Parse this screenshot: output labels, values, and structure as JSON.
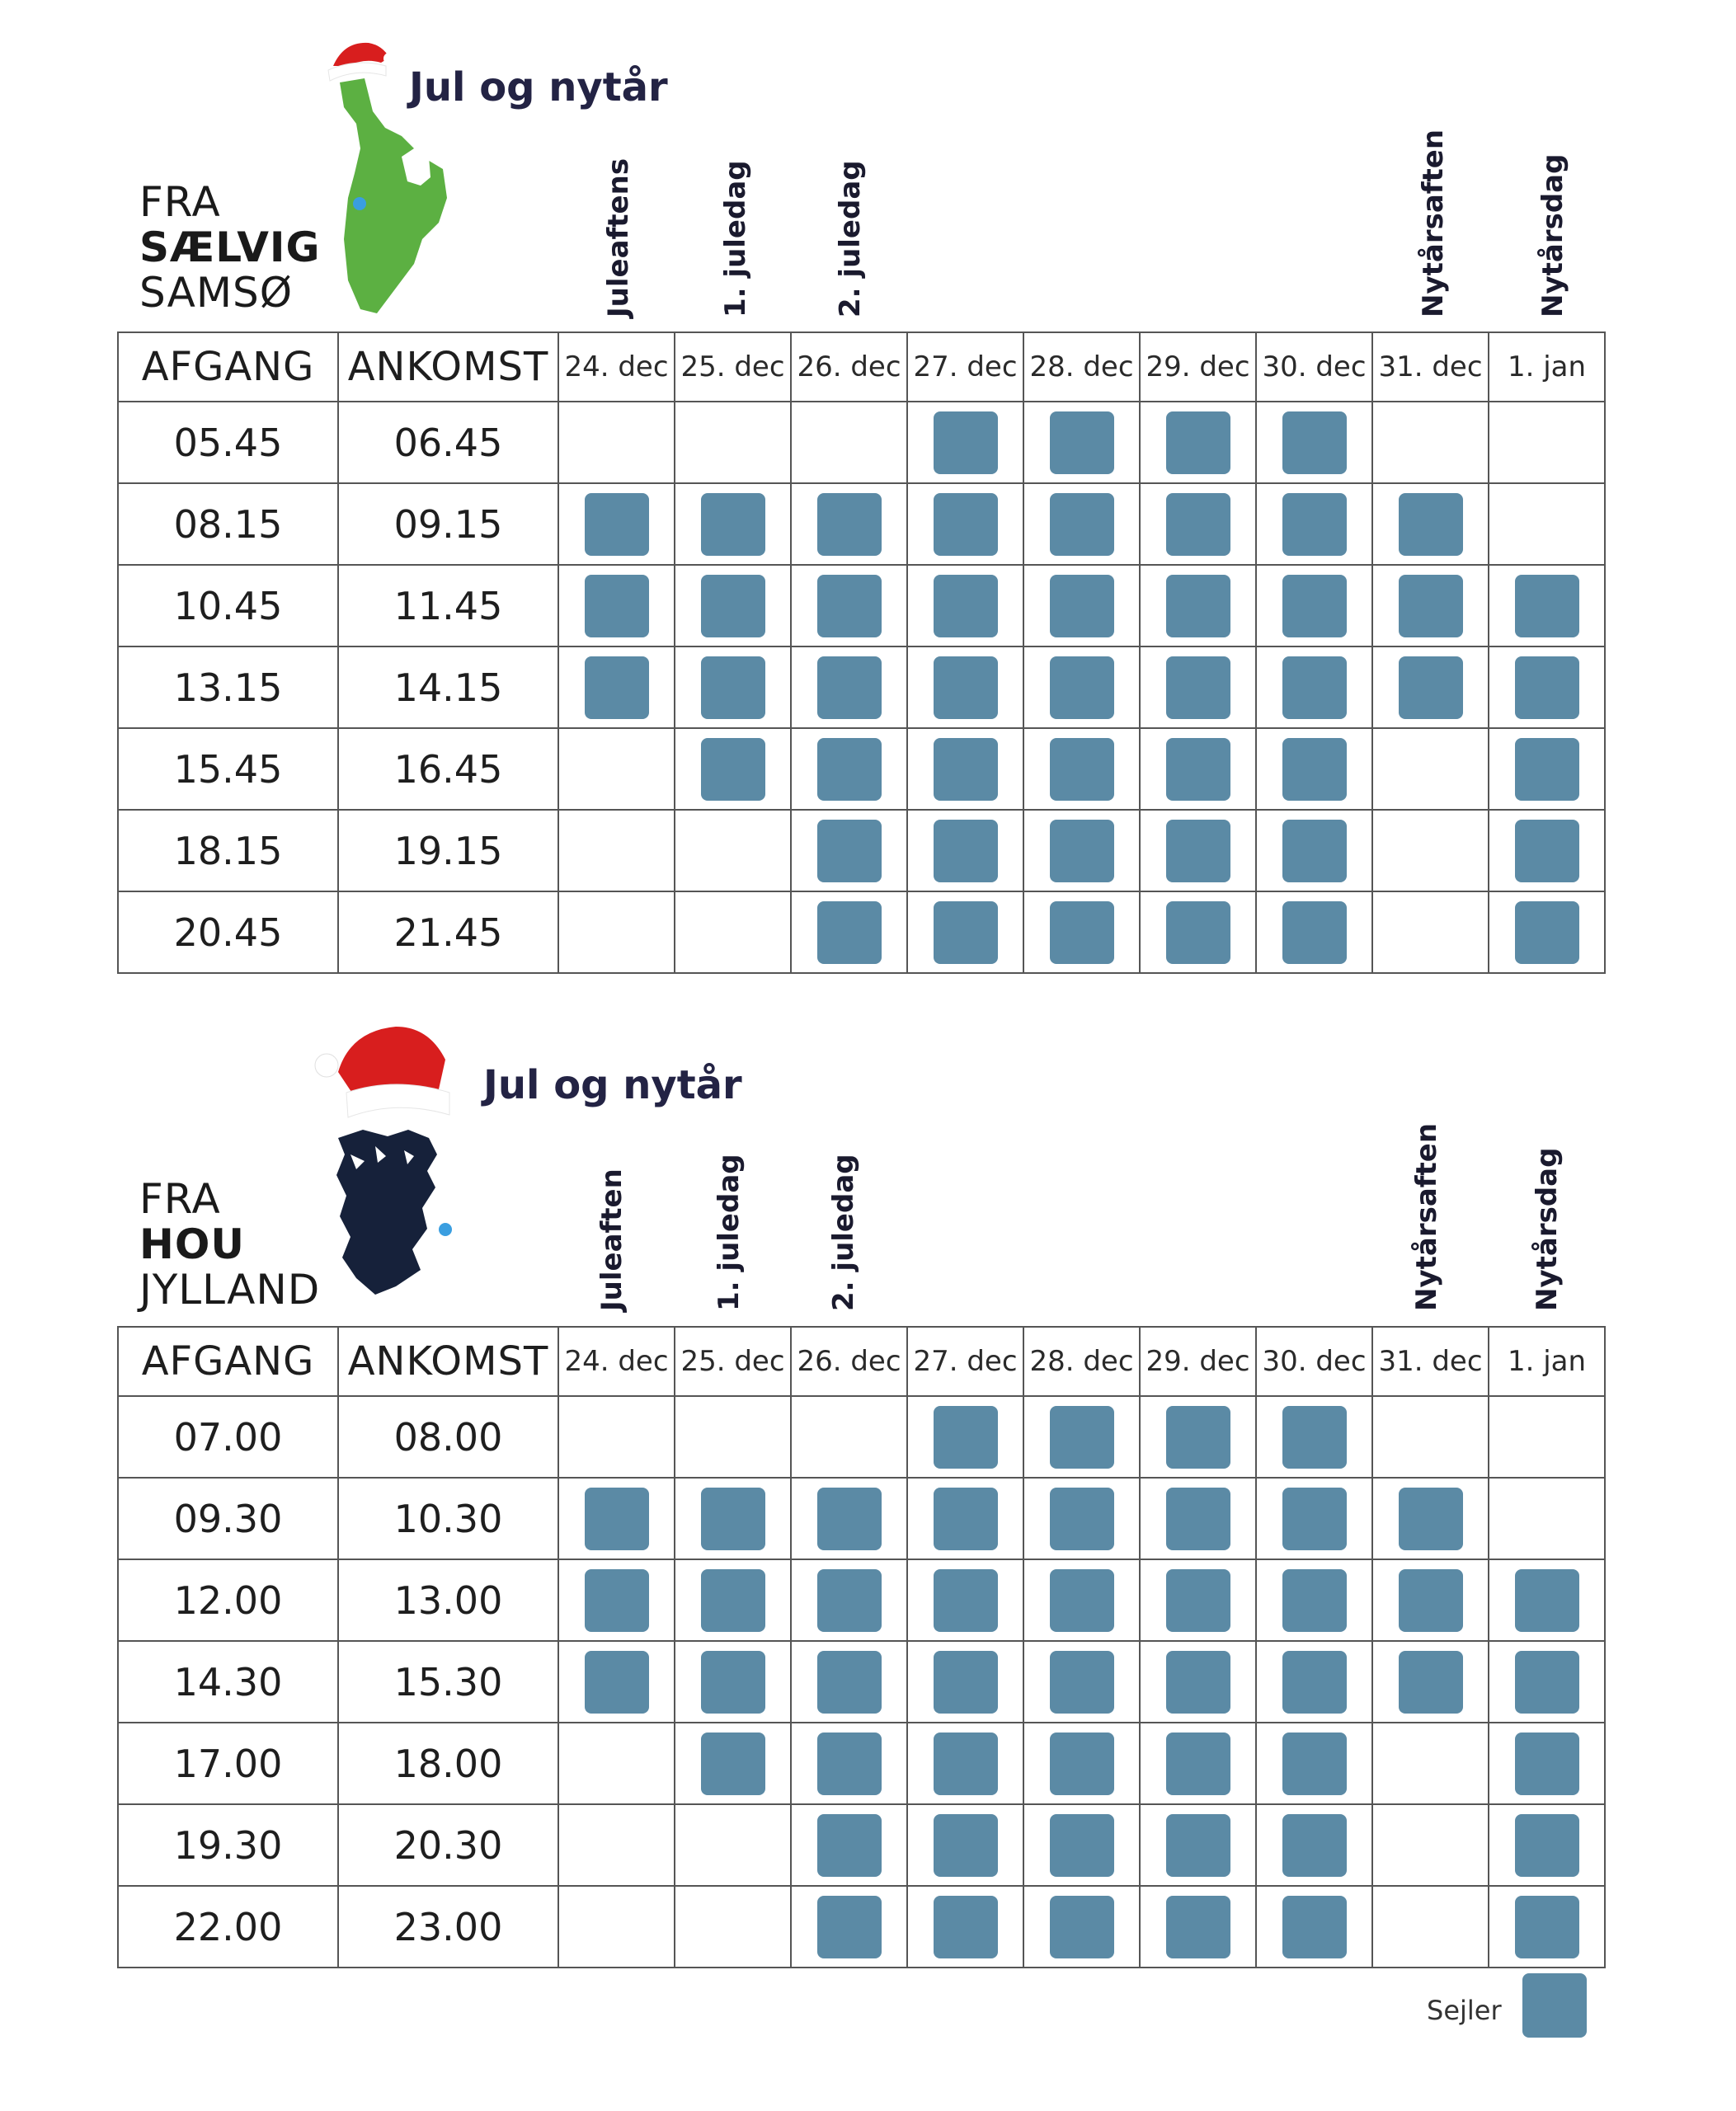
{
  "legend": {
    "label": "Sejler",
    "color": "#5b8aa5"
  },
  "sections": [
    {
      "title": "Jul og nytår",
      "from": [
        "FRA",
        "SÆLVIG",
        "SAMSØ"
      ],
      "island": "samso-map",
      "island_color": "#5cb042",
      "holidays": [
        "Juleaftens",
        "1. juledag",
        "2. juledag",
        "Nytårsaften",
        "Nytårsdag"
      ],
      "headers": {
        "depart": "AFGANG",
        "arrive": "ANKOMST"
      },
      "days": [
        "24. dec",
        "25. dec",
        "26. dec",
        "27. dec",
        "28. dec",
        "29. dec",
        "30. dec",
        "31. dec",
        "1. jan"
      ],
      "rows": [
        {
          "depart": "05.45",
          "arrive": "06.45",
          "sails": [
            0,
            0,
            0,
            1,
            1,
            1,
            1,
            0,
            0
          ]
        },
        {
          "depart": "08.15",
          "arrive": "09.15",
          "sails": [
            1,
            1,
            1,
            1,
            1,
            1,
            1,
            1,
            0
          ]
        },
        {
          "depart": "10.45",
          "arrive": "11.45",
          "sails": [
            1,
            1,
            1,
            1,
            1,
            1,
            1,
            1,
            1
          ]
        },
        {
          "depart": "13.15",
          "arrive": "14.15",
          "sails": [
            1,
            1,
            1,
            1,
            1,
            1,
            1,
            1,
            1
          ]
        },
        {
          "depart": "15.45",
          "arrive": "16.45",
          "sails": [
            0,
            1,
            1,
            1,
            1,
            1,
            1,
            0,
            1
          ]
        },
        {
          "depart": "18.15",
          "arrive": "19.15",
          "sails": [
            0,
            0,
            1,
            1,
            1,
            1,
            1,
            0,
            1
          ]
        },
        {
          "depart": "20.45",
          "arrive": "21.45",
          "sails": [
            0,
            0,
            1,
            1,
            1,
            1,
            1,
            0,
            1
          ]
        }
      ]
    },
    {
      "title": "Jul og nytår",
      "from": [
        "FRA",
        "HOU",
        "JYLLAND"
      ],
      "island": "jylland-map",
      "island_color": "#16213a",
      "holidays": [
        "Juleaften",
        "1. juledag",
        "2. juledag",
        "Nytårsaften",
        "Nytårsdag"
      ],
      "headers": {
        "depart": "AFGANG",
        "arrive": "ANKOMST"
      },
      "days": [
        "24. dec",
        "25. dec",
        "26. dec",
        "27. dec",
        "28. dec",
        "29. dec",
        "30. dec",
        "31. dec",
        "1. jan"
      ],
      "rows": [
        {
          "depart": "07.00",
          "arrive": "08.00",
          "sails": [
            0,
            0,
            0,
            1,
            1,
            1,
            1,
            0,
            0
          ]
        },
        {
          "depart": "09.30",
          "arrive": "10.30",
          "sails": [
            1,
            1,
            1,
            1,
            1,
            1,
            1,
            1,
            0
          ]
        },
        {
          "depart": "12.00",
          "arrive": "13.00",
          "sails": [
            1,
            1,
            1,
            1,
            1,
            1,
            1,
            1,
            1
          ]
        },
        {
          "depart": "14.30",
          "arrive": "15.30",
          "sails": [
            1,
            1,
            1,
            1,
            1,
            1,
            1,
            1,
            1
          ]
        },
        {
          "depart": "17.00",
          "arrive": "18.00",
          "sails": [
            0,
            1,
            1,
            1,
            1,
            1,
            1,
            0,
            1
          ]
        },
        {
          "depart": "19.30",
          "arrive": "20.30",
          "sails": [
            0,
            0,
            1,
            1,
            1,
            1,
            1,
            0,
            1
          ]
        },
        {
          "depart": "22.00",
          "arrive": "23.00",
          "sails": [
            0,
            0,
            1,
            1,
            1,
            1,
            1,
            0,
            1
          ]
        }
      ]
    }
  ]
}
